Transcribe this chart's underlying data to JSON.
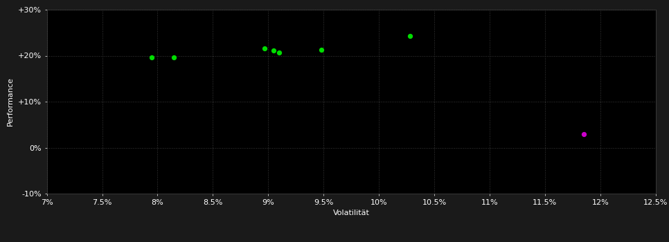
{
  "background_color": "#1a1a1a",
  "plot_bg_color": "#000000",
  "grid_color": "#3a3a3a",
  "grid_linestyle": ":",
  "xlabel": "Volatilität",
  "ylabel": "Performance",
  "xlim": [
    0.07,
    0.125
  ],
  "ylim": [
    -0.1,
    0.3
  ],
  "xticks": [
    0.07,
    0.075,
    0.08,
    0.085,
    0.09,
    0.095,
    0.1,
    0.105,
    0.11,
    0.115,
    0.12,
    0.125
  ],
  "xtick_labels": [
    "7%",
    "7.5%",
    "8%",
    "8.5%",
    "9%",
    "9.5%",
    "10%",
    "10.5%",
    "11%",
    "11.5%",
    "12%",
    "12.5%"
  ],
  "yticks": [
    -0.1,
    0.0,
    0.1,
    0.2,
    0.3
  ],
  "ytick_labels": [
    "-10%",
    "0%",
    "+10%",
    "+20%",
    "+30%"
  ],
  "green_points": [
    [
      0.0795,
      0.196
    ],
    [
      0.0815,
      0.196
    ],
    [
      0.0897,
      0.216
    ],
    [
      0.0905,
      0.211
    ],
    [
      0.091,
      0.207
    ],
    [
      0.0948,
      0.213
    ],
    [
      0.1028,
      0.243
    ]
  ],
  "magenta_points": [
    [
      0.1185,
      0.03
    ]
  ],
  "green_color": "#00dd00",
  "magenta_color": "#cc00cc",
  "marker_size": 18,
  "tick_color": "#ffffff",
  "label_color": "#ffffff",
  "tick_fontsize": 8,
  "label_fontsize": 8
}
